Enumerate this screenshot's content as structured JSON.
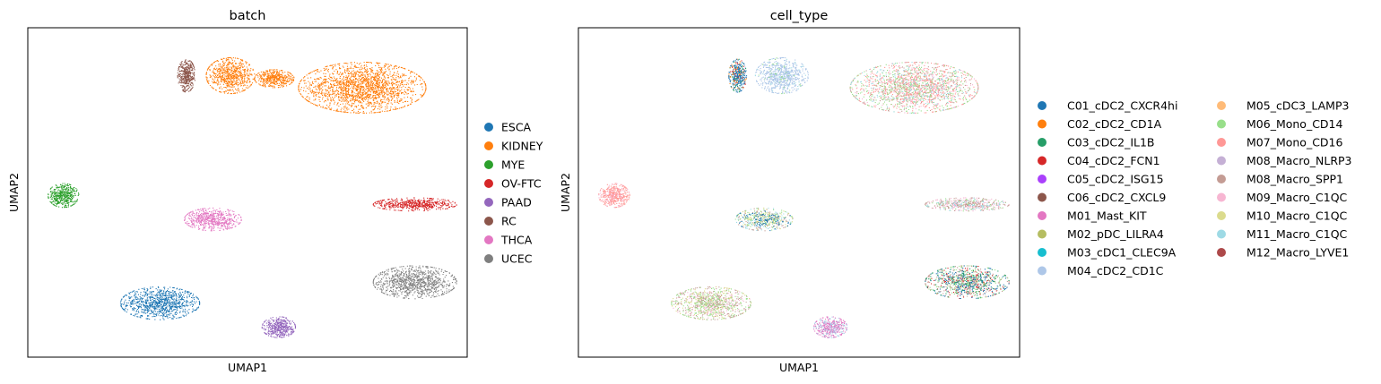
{
  "chart_data": [
    {
      "type": "scatter",
      "title": "batch",
      "xlabel": "UMAP1",
      "ylabel": "UMAP2",
      "grid": false,
      "legend_position": "right",
      "series": [
        {
          "name": "ESCA",
          "color": "#1f77b4",
          "clusters": [
            {
              "x": 3.0,
              "y": 1.8,
              "sx": 0.9,
              "sy": 0.55
            }
          ]
        },
        {
          "name": "KIDNEY",
          "color": "#ff7f0e",
          "clusters": [
            {
              "x": 7.6,
              "y": 9.0,
              "sx": 1.45,
              "sy": 0.85
            },
            {
              "x": 4.6,
              "y": 9.4,
              "sx": 0.55,
              "sy": 0.6
            },
            {
              "x": 5.6,
              "y": 9.3,
              "sx": 0.45,
              "sy": 0.3
            }
          ]
        },
        {
          "name": "MYE",
          "color": "#2ca02c",
          "clusters": [
            {
              "x": 0.8,
              "y": 5.4,
              "sx": 0.35,
              "sy": 0.4
            }
          ]
        },
        {
          "name": "OV-FTC",
          "color": "#d62728",
          "clusters": [
            {
              "x": 8.8,
              "y": 5.1,
              "sx": 0.95,
              "sy": 0.22
            }
          ]
        },
        {
          "name": "PAAD",
          "color": "#9467bd",
          "clusters": [
            {
              "x": 5.7,
              "y": 1.0,
              "sx": 0.38,
              "sy": 0.35
            }
          ]
        },
        {
          "name": "RC",
          "color": "#8c564b",
          "clusters": [
            {
              "x": 3.6,
              "y": 9.4,
              "sx": 0.2,
              "sy": 0.55
            }
          ]
        },
        {
          "name": "THCA",
          "color": "#e377c2",
          "clusters": [
            {
              "x": 4.2,
              "y": 4.6,
              "sx": 0.65,
              "sy": 0.38
            }
          ]
        },
        {
          "name": "UCEC",
          "color": "#7f7f7f",
          "clusters": [
            {
              "x": 8.8,
              "y": 2.5,
              "sx": 0.95,
              "sy": 0.55
            }
          ]
        }
      ],
      "xlim": [
        0,
        10
      ],
      "ylim": [
        0,
        11
      ]
    },
    {
      "type": "scatter",
      "title": "cell_type",
      "xlabel": "UMAP1",
      "ylabel": "UMAP2",
      "grid": false,
      "legend_position": "right",
      "legend_columns": 2,
      "series": [
        {
          "name": "C01_cDC2_CXCR4hi",
          "color": "#1f77b4"
        },
        {
          "name": "C02_cDC2_CD1A",
          "color": "#ff7f0e"
        },
        {
          "name": "C03_cDC2_IL1B",
          "color": "#279e68"
        },
        {
          "name": "C04_cDC2_FCN1",
          "color": "#d62728"
        },
        {
          "name": "C05_cDC2_ISG15",
          "color": "#aa40fc"
        },
        {
          "name": "C06_cDC2_CXCL9",
          "color": "#8c564b"
        },
        {
          "name": "M01_Mast_KIT",
          "color": "#e377c2"
        },
        {
          "name": "M02_pDC_LILRA4",
          "color": "#b5bd61"
        },
        {
          "name": "M03_cDC1_CLEC9A",
          "color": "#17becf"
        },
        {
          "name": "M04_cDC2_CD1C",
          "color": "#aec7e8"
        },
        {
          "name": "M05_cDC3_LAMP3",
          "color": "#ffbb78"
        },
        {
          "name": "M06_Mono_CD14",
          "color": "#98df8a"
        },
        {
          "name": "M07_Mono_CD16",
          "color": "#ff9896"
        },
        {
          "name": "M08_Macro_NLRP3",
          "color": "#c5b0d5"
        },
        {
          "name": "M08_Macro_SPP1",
          "color": "#c49c94"
        },
        {
          "name": "M09_Macro_C1QC",
          "color": "#f7b6d2"
        },
        {
          "name": "M10_Macro_C1QC",
          "color": "#dbdb8d"
        },
        {
          "name": "M11_Macro_C1QC",
          "color": "#9edae5"
        },
        {
          "name": "M12_Macro_LYVE1",
          "color": "#ad494a"
        }
      ],
      "clusters": [
        {
          "x": 7.6,
          "y": 9.0,
          "sx": 1.45,
          "sy": 0.85,
          "mix": {
            "M07_Mono_CD16": 0.4,
            "M06_Mono_CD14": 0.25,
            "M08_Macro_SPP1": 0.15,
            "M09_Macro_C1QC": 0.1,
            "M11_Macro_C1QC": 0.1
          }
        },
        {
          "x": 4.6,
          "y": 9.4,
          "sx": 0.6,
          "sy": 0.6,
          "mix": {
            "M04_cDC2_CD1C": 0.85,
            "M11_Macro_C1QC": 0.1,
            "M06_Mono_CD14": 0.05
          }
        },
        {
          "x": 3.6,
          "y": 9.4,
          "sx": 0.2,
          "sy": 0.55,
          "mix": {
            "C01_cDC2_CXCR4hi": 0.4,
            "C02_cDC2_CD1A": 0.15,
            "C03_cDC2_IL1B": 0.15,
            "C04_cDC2_FCN1": 0.15,
            "M04_cDC2_CD1C": 0.15
          }
        },
        {
          "x": 0.8,
          "y": 5.4,
          "sx": 0.35,
          "sy": 0.4,
          "mix": {
            "M07_Mono_CD16": 0.85,
            "M09_Macro_C1QC": 0.15
          }
        },
        {
          "x": 8.8,
          "y": 5.1,
          "sx": 0.95,
          "sy": 0.22,
          "mix": {
            "M09_Macro_C1QC": 0.35,
            "M08_Macro_SPP1": 0.3,
            "M06_Mono_CD14": 0.2,
            "M11_Macro_C1QC": 0.15
          }
        },
        {
          "x": 4.2,
          "y": 4.6,
          "sx": 0.65,
          "sy": 0.38,
          "mix": {
            "M11_Macro_C1QC": 0.25,
            "M08_Macro_SPP1": 0.25,
            "M10_Macro_C1QC": 0.2,
            "C01_cDC2_CXCR4hi": 0.15,
            "M06_Mono_CD14": 0.15
          }
        },
        {
          "x": 3.0,
          "y": 1.8,
          "sx": 0.9,
          "sy": 0.55,
          "mix": {
            "M08_Macro_SPP1": 0.35,
            "M06_Mono_CD14": 0.25,
            "M10_Macro_C1QC": 0.2,
            "M09_Macro_C1QC": 0.2
          }
        },
        {
          "x": 5.7,
          "y": 1.0,
          "sx": 0.38,
          "sy": 0.35,
          "mix": {
            "M01_Mast_KIT": 0.6,
            "M04_cDC2_CD1C": 0.2,
            "M11_Macro_C1QC": 0.2
          }
        },
        {
          "x": 8.8,
          "y": 2.5,
          "sx": 0.95,
          "sy": 0.55,
          "mix": {
            "C01_cDC2_CXCR4hi": 0.2,
            "C04_cDC2_FCN1": 0.2,
            "M06_Mono_CD14": 0.25,
            "M08_Macro_SPP1": 0.2,
            "C03_cDC2_IL1B": 0.15
          }
        }
      ],
      "xlim": [
        0,
        10
      ],
      "ylim": [
        0,
        11
      ]
    }
  ]
}
